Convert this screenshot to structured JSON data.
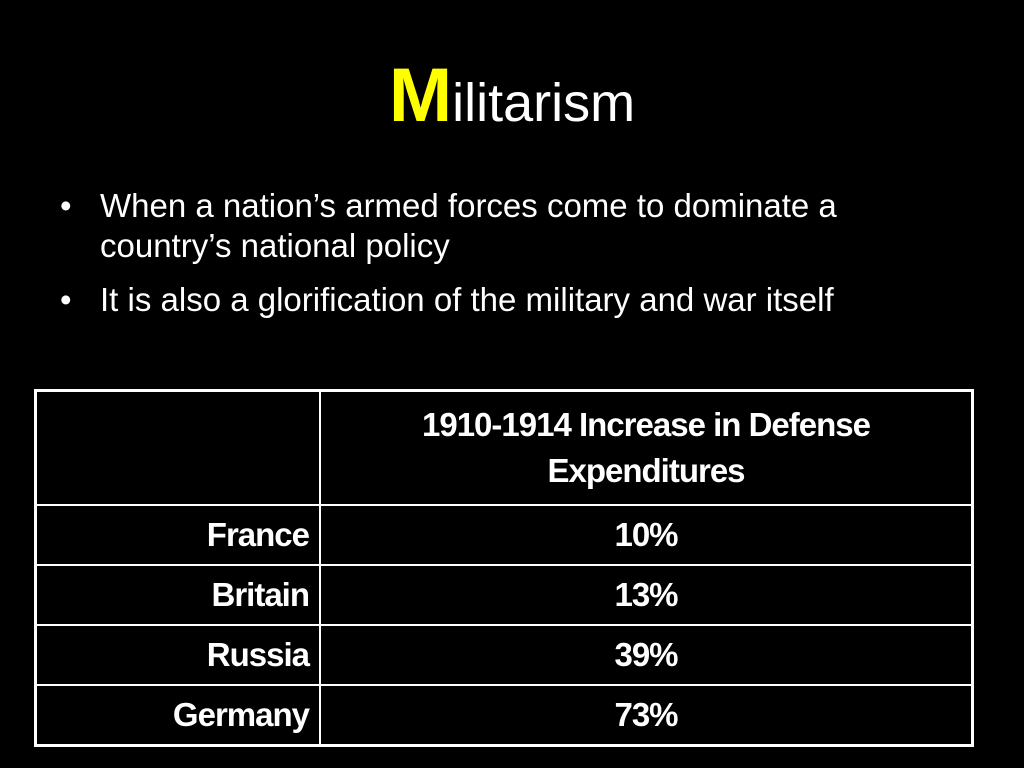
{
  "title": {
    "first_letter": "M",
    "rest": "ilitarism"
  },
  "bullets": [
    {
      "marker": "•",
      "text": "When a nation’s armed forces come to dominate a country’s national policy"
    },
    {
      "marker": "•",
      "text": "It is also a glorification of the military and war itself"
    }
  ],
  "table": {
    "headers": [
      "",
      "1910-1914 Increase in Defense Expenditures"
    ],
    "rows": [
      {
        "country": "France",
        "value": "10%"
      },
      {
        "country": "Britain",
        "value": "13%"
      },
      {
        "country": "Russia",
        "value": "39%"
      },
      {
        "country": "Germany",
        "value": "73%"
      }
    ]
  },
  "colors": {
    "background": "#000000",
    "text": "#ffffff",
    "accent": "#ffff00"
  }
}
